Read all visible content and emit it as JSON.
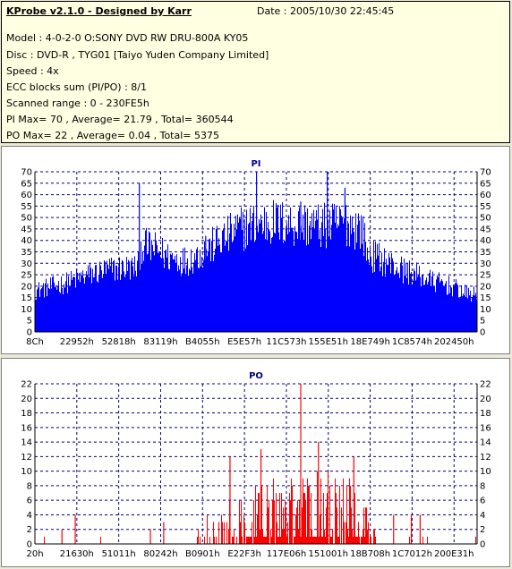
{
  "header": {
    "title": "KProbe v2.1.0 - Designed by Karr",
    "date": "Date : 2005/10/30 22:45:45",
    "model": "Model : 4-0-2-0 O:SONY    DVD RW DRU-800A  KY05",
    "disc": "Disc : DVD-R , TYG01 [Taiyo Yuden Company Limited]",
    "speed": "Speed : 4x",
    "ecc": "ECC blocks sum (PI/PO) : 8/1",
    "range": "Scanned range : 0 - 230FE5h",
    "pi_stats": "PI Max= 70 , Average= 21.79 , Total= 360544",
    "po_stats": "PO Max= 22 , Average= 0.04 , Total= 5375"
  },
  "chart_data": [
    {
      "type": "bar",
      "title": "PI",
      "ylim": [
        0,
        70
      ],
      "yticks": [
        0,
        5,
        10,
        15,
        20,
        25,
        30,
        35,
        40,
        45,
        50,
        55,
        60,
        65,
        70
      ],
      "xticks": [
        "8Ch",
        "22952h",
        "52818h",
        "83119h",
        "B4055h",
        "E5E57h",
        "11C573h",
        "155E51h",
        "18E749h",
        "1C8574h",
        "202450h"
      ],
      "color": "#0000ff",
      "series": [
        {
          "x": 0.0,
          "y": 18
        },
        {
          "x": 0.04,
          "y": 20
        },
        {
          "x": 0.08,
          "y": 22
        },
        {
          "x": 0.12,
          "y": 25
        },
        {
          "x": 0.16,
          "y": 27
        },
        {
          "x": 0.2,
          "y": 28
        },
        {
          "x": 0.23,
          "y": 28
        },
        {
          "x": 0.24,
          "y": 38
        },
        {
          "x": 0.27,
          "y": 36
        },
        {
          "x": 0.3,
          "y": 33
        },
        {
          "x": 0.34,
          "y": 31
        },
        {
          "x": 0.38,
          "y": 35
        },
        {
          "x": 0.42,
          "y": 40
        },
        {
          "x": 0.46,
          "y": 45
        },
        {
          "x": 0.5,
          "y": 47
        },
        {
          "x": 0.54,
          "y": 48
        },
        {
          "x": 0.58,
          "y": 47
        },
        {
          "x": 0.62,
          "y": 47
        },
        {
          "x": 0.66,
          "y": 46
        },
        {
          "x": 0.7,
          "y": 48
        },
        {
          "x": 0.74,
          "y": 45
        },
        {
          "x": 0.75,
          "y": 34
        },
        {
          "x": 0.78,
          "y": 32
        },
        {
          "x": 0.82,
          "y": 28
        },
        {
          "x": 0.86,
          "y": 25
        },
        {
          "x": 0.9,
          "y": 22
        },
        {
          "x": 0.94,
          "y": 20
        },
        {
          "x": 0.97,
          "y": 17
        },
        {
          "x": 1.0,
          "y": 16
        }
      ],
      "spikes": [
        {
          "x": 0.235,
          "y": 65
        },
        {
          "x": 0.5,
          "y": 70
        },
        {
          "x": 0.7,
          "y": 63
        },
        {
          "x": 0.66,
          "y": 70
        },
        {
          "x": 0.385,
          "y": 42
        },
        {
          "x": 0.6,
          "y": 57
        }
      ]
    },
    {
      "type": "bar",
      "title": "PO",
      "ylim": [
        0,
        22
      ],
      "yticks": [
        0,
        2,
        4,
        6,
        8,
        10,
        12,
        14,
        16,
        18,
        20,
        22
      ],
      "xticks": [
        "20h",
        "21630h",
        "51011h",
        "80242h",
        "B0901h",
        "E22F3h",
        "117E06h",
        "151001h",
        "18B708h",
        "1C7012h",
        "200E31h"
      ],
      "color": "#ff0000",
      "series": [
        {
          "x": 0.0,
          "y": 0
        },
        {
          "x": 0.36,
          "y": 0.3
        },
        {
          "x": 0.38,
          "y": 2
        },
        {
          "x": 0.44,
          "y": 3
        },
        {
          "x": 0.5,
          "y": 4
        },
        {
          "x": 0.56,
          "y": 4.5
        },
        {
          "x": 0.62,
          "y": 5
        },
        {
          "x": 0.66,
          "y": 5
        },
        {
          "x": 0.7,
          "y": 4.5
        },
        {
          "x": 0.74,
          "y": 3.5
        },
        {
          "x": 0.77,
          "y": 2
        },
        {
          "x": 0.78,
          "y": 0.3
        },
        {
          "x": 1.0,
          "y": 0
        }
      ],
      "spikes": [
        {
          "x": 0.6,
          "y": 22
        },
        {
          "x": 0.44,
          "y": 12
        },
        {
          "x": 0.51,
          "y": 13
        },
        {
          "x": 0.64,
          "y": 14
        },
        {
          "x": 0.72,
          "y": 12
        },
        {
          "x": 0.06,
          "y": 2
        },
        {
          "x": 0.09,
          "y": 4
        },
        {
          "x": 0.26,
          "y": 2
        },
        {
          "x": 0.29,
          "y": 3
        },
        {
          "x": 0.81,
          "y": 4
        },
        {
          "x": 0.85,
          "y": 4
        },
        {
          "x": 0.87,
          "y": 4
        }
      ]
    }
  ]
}
